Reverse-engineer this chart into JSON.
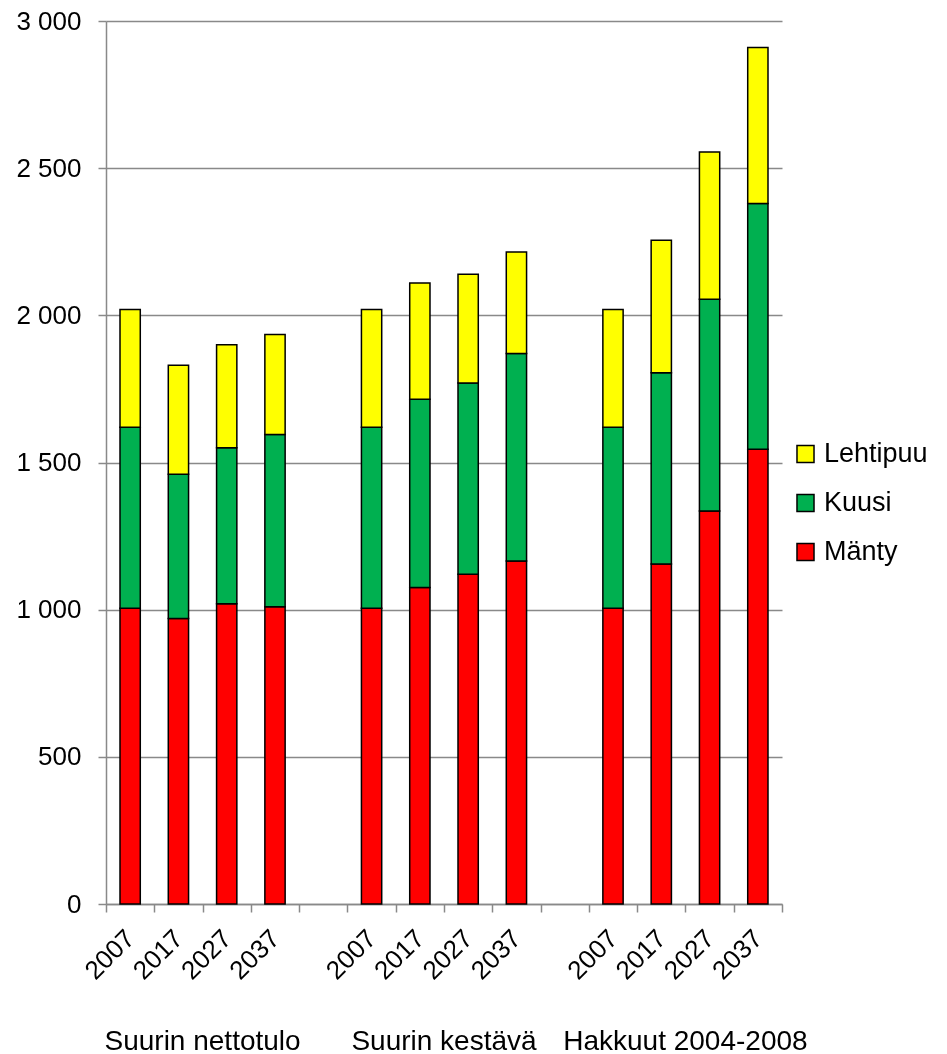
{
  "chart_data": {
    "type": "bar",
    "stacked": true,
    "categories": [
      "2007",
      "2017",
      "2027",
      "2037",
      null,
      "2007",
      "2017",
      "2027",
      "2037",
      null,
      "2007",
      "2017",
      "2027",
      "2037"
    ],
    "series": [
      {
        "name": "Mänty",
        "color": "#ff0000",
        "values": [
          1005,
          970,
          1020,
          1010,
          null,
          1005,
          1075,
          1120,
          1165,
          null,
          1005,
          1155,
          1335,
          1545
        ]
      },
      {
        "name": "Kuusi",
        "color": "#00b050",
        "values": [
          615,
          490,
          530,
          585,
          null,
          615,
          640,
          650,
          705,
          null,
          615,
          650,
          720,
          835
        ]
      },
      {
        "name": "Lehtipuu",
        "color": "#ffff00",
        "values": [
          400,
          370,
          350,
          340,
          null,
          400,
          395,
          370,
          345,
          null,
          400,
          450,
          500,
          530
        ]
      }
    ],
    "ylim": [
      0,
      3000
    ],
    "yticks": [
      0,
      500,
      {
        "value": 1000,
        "label": "1 000"
      },
      {
        "value": 1500,
        "label": "1 500"
      },
      {
        "value": 2000,
        "label": "2 000"
      },
      {
        "value": 2500,
        "label": "2 500"
      },
      {
        "value": 3000,
        "label": "3 000"
      }
    ],
    "grid": "y",
    "legend": "right",
    "annotations": [
      "Suurin nettotulo",
      "Suurin kestävä",
      "Hakkuut 2004-2008"
    ]
  }
}
